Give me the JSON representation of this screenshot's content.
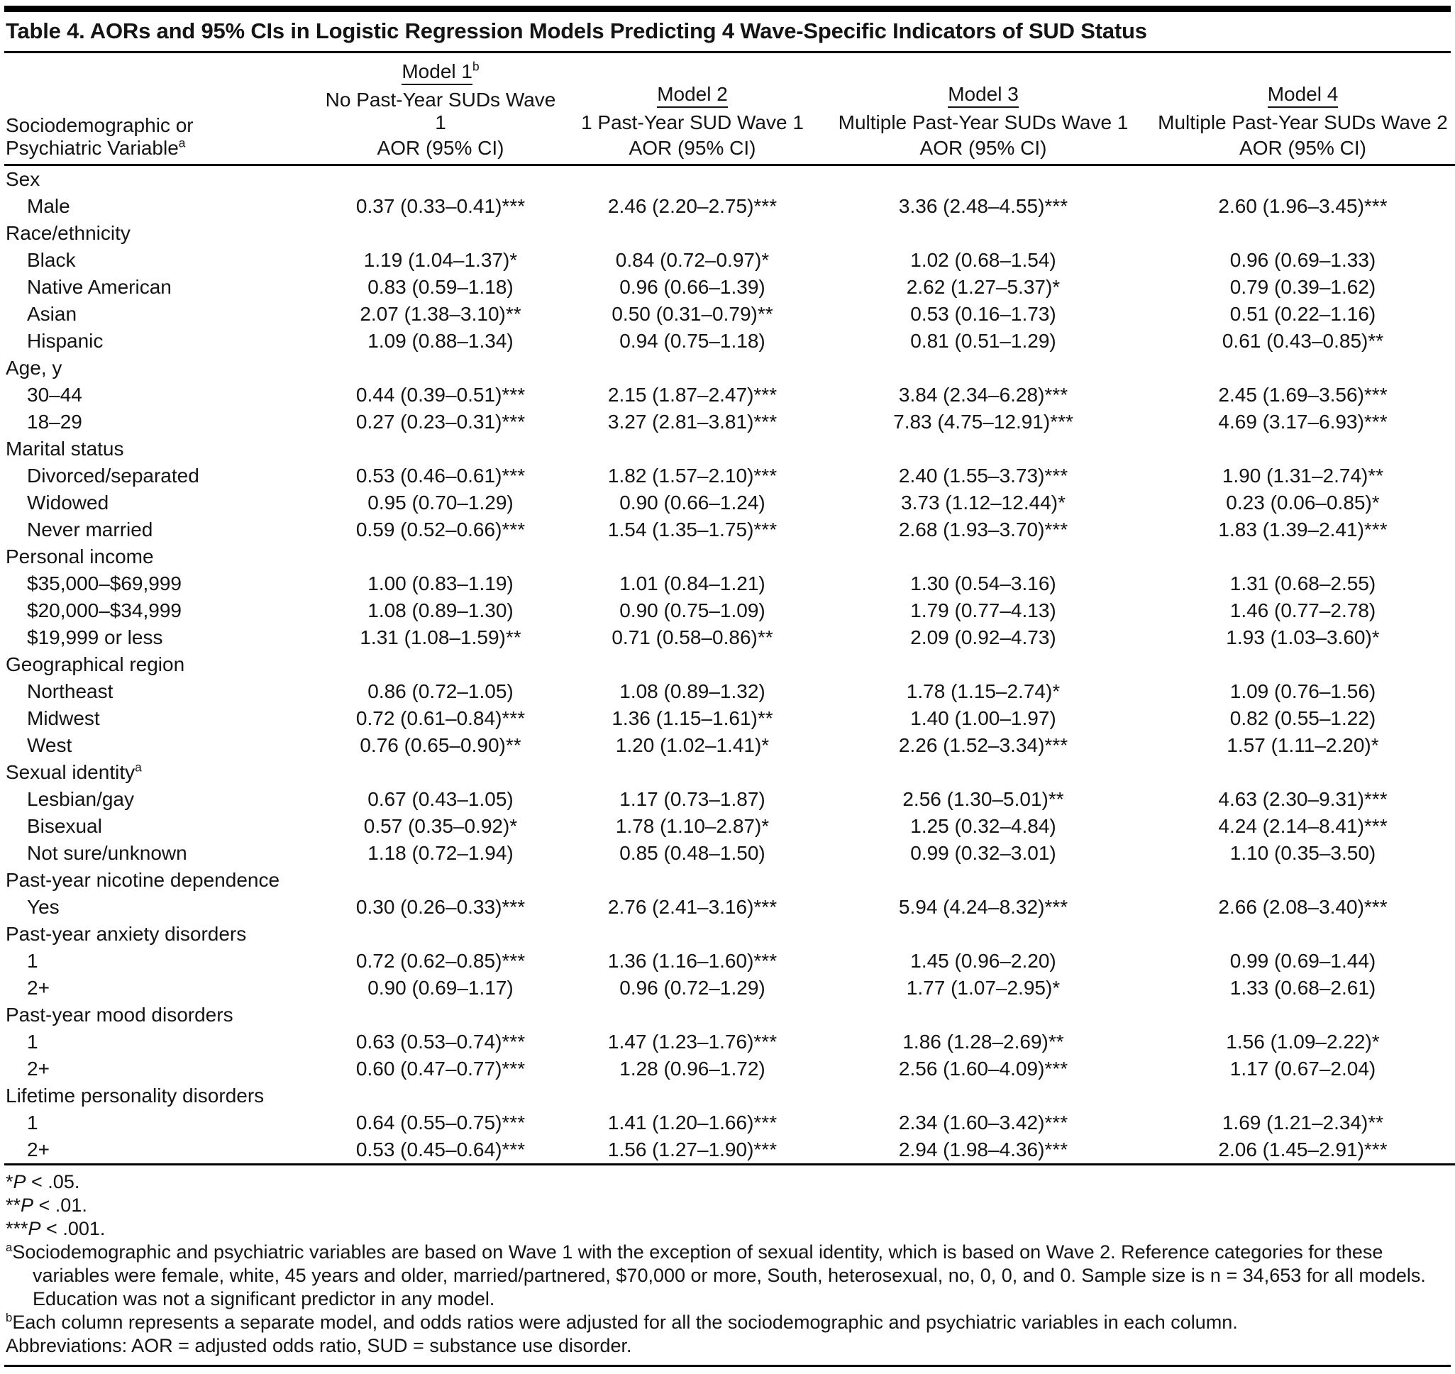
{
  "title": "Table 4. AORs and 95% CIs in Logistic Regression Models Predicting 4 Wave-Specific Indicators of SUD Status",
  "table": {
    "stub_header": {
      "line1": "Sociodemographic or",
      "line2": "Psychiatric Variable",
      "line2_sup": "a"
    },
    "columns": [
      {
        "model": "Model 1",
        "model_sup": "b",
        "description": "No Past-Year SUDs Wave 1",
        "measure": "AOR (95% CI)"
      },
      {
        "model": "Model 2",
        "model_sup": "",
        "description": "1 Past-Year SUD Wave 1",
        "measure": "AOR (95% CI)"
      },
      {
        "model": "Model 3",
        "model_sup": "",
        "description": "Multiple Past-Year SUDs Wave 1",
        "measure": "AOR (95% CI)"
      },
      {
        "model": "Model 4",
        "model_sup": "",
        "description": "Multiple Past-Year SUDs Wave 2",
        "measure": "AOR (95% CI)"
      }
    ],
    "rows": [
      {
        "type": "section",
        "label": "Sex",
        "sup": ""
      },
      {
        "type": "item",
        "label": "Male",
        "values": [
          "0.37 (0.33–0.41)***",
          "2.46 (2.20–2.75)***",
          "3.36 (2.48–4.55)***",
          "2.60 (1.96–3.45)***"
        ]
      },
      {
        "type": "section",
        "label": "Race/ethnicity",
        "sup": ""
      },
      {
        "type": "item",
        "label": "Black",
        "values": [
          "1.19 (1.04–1.37)*",
          "0.84 (0.72–0.97)*",
          "1.02 (0.68–1.54)",
          "0.96 (0.69–1.33)"
        ]
      },
      {
        "type": "item",
        "label": "Native American",
        "values": [
          "0.83 (0.59–1.18)",
          "0.96 (0.66–1.39)",
          "2.62 (1.27–5.37)*",
          "0.79 (0.39–1.62)"
        ]
      },
      {
        "type": "item",
        "label": "Asian",
        "values": [
          "2.07 (1.38–3.10)**",
          "0.50 (0.31–0.79)**",
          "0.53 (0.16–1.73)",
          "0.51 (0.22–1.16)"
        ]
      },
      {
        "type": "item",
        "label": "Hispanic",
        "values": [
          "1.09 (0.88–1.34)",
          "0.94 (0.75–1.18)",
          "0.81 (0.51–1.29)",
          "0.61 (0.43–0.85)**"
        ]
      },
      {
        "type": "section",
        "label": "Age, y",
        "sup": ""
      },
      {
        "type": "item",
        "label": "30–44",
        "values": [
          "0.44 (0.39–0.51)***",
          "2.15 (1.87–2.47)***",
          "3.84 (2.34–6.28)***",
          "2.45 (1.69–3.56)***"
        ]
      },
      {
        "type": "item",
        "label": "18–29",
        "values": [
          "0.27 (0.23–0.31)***",
          "3.27 (2.81–3.81)***",
          "7.83 (4.75–12.91)***",
          "4.69 (3.17–6.93)***"
        ]
      },
      {
        "type": "section",
        "label": "Marital status",
        "sup": ""
      },
      {
        "type": "item",
        "label": "Divorced/separated",
        "values": [
          "0.53 (0.46–0.61)***",
          "1.82 (1.57–2.10)***",
          "2.40 (1.55–3.73)***",
          "1.90 (1.31–2.74)**"
        ]
      },
      {
        "type": "item",
        "label": "Widowed",
        "values": [
          "0.95 (0.70–1.29)",
          "0.90 (0.66–1.24)",
          "3.73 (1.12–12.44)*",
          "0.23 (0.06–0.85)*"
        ]
      },
      {
        "type": "item",
        "label": "Never married",
        "values": [
          "0.59 (0.52–0.66)***",
          "1.54 (1.35–1.75)***",
          "2.68 (1.93–3.70)***",
          "1.83 (1.39–2.41)***"
        ]
      },
      {
        "type": "section",
        "label": "Personal income",
        "sup": ""
      },
      {
        "type": "item",
        "label": "$35,000–$69,999",
        "values": [
          "1.00 (0.83–1.19)",
          "1.01 (0.84–1.21)",
          "1.30 (0.54–3.16)",
          "1.31 (0.68–2.55)"
        ]
      },
      {
        "type": "item",
        "label": "$20,000–$34,999",
        "values": [
          "1.08 (0.89–1.30)",
          "0.90 (0.75–1.09)",
          "1.79 (0.77–4.13)",
          "1.46 (0.77–2.78)"
        ]
      },
      {
        "type": "item",
        "label": "$19,999 or less",
        "values": [
          "1.31 (1.08–1.59)**",
          "0.71 (0.58–0.86)**",
          "2.09 (0.92–4.73)",
          "1.93 (1.03–3.60)*"
        ]
      },
      {
        "type": "section",
        "label": "Geographical region",
        "sup": ""
      },
      {
        "type": "item",
        "label": "Northeast",
        "values": [
          "0.86 (0.72–1.05)",
          "1.08 (0.89–1.32)",
          "1.78 (1.15–2.74)*",
          "1.09 (0.76–1.56)"
        ]
      },
      {
        "type": "item",
        "label": "Midwest",
        "values": [
          "0.72 (0.61–0.84)***",
          "1.36 (1.15–1.61)**",
          "1.40 (1.00–1.97)",
          "0.82 (0.55–1.22)"
        ]
      },
      {
        "type": "item",
        "label": "West",
        "values": [
          "0.76 (0.65–0.90)**",
          "1.20 (1.02–1.41)*",
          "2.26 (1.52–3.34)***",
          "1.57 (1.11–2.20)*"
        ]
      },
      {
        "type": "section",
        "label": "Sexual identity",
        "sup": "a"
      },
      {
        "type": "item",
        "label": "Lesbian/gay",
        "values": [
          "0.67 (0.43–1.05)",
          "1.17 (0.73–1.87)",
          "2.56 (1.30–5.01)**",
          "4.63 (2.30–9.31)***"
        ]
      },
      {
        "type": "item",
        "label": "Bisexual",
        "values": [
          "0.57 (0.35–0.92)*",
          "1.78 (1.10–2.87)*",
          "1.25 (0.32–4.84)",
          "4.24 (2.14–8.41)***"
        ]
      },
      {
        "type": "item",
        "label": "Not sure/unknown",
        "values": [
          "1.18 (0.72–1.94)",
          "0.85 (0.48–1.50)",
          "0.99 (0.32–3.01)",
          "1.10 (0.35–3.50)"
        ]
      },
      {
        "type": "section",
        "label": "Past-year nicotine dependence",
        "sup": ""
      },
      {
        "type": "item",
        "label": "Yes",
        "values": [
          "0.30 (0.26–0.33)***",
          "2.76 (2.41–3.16)***",
          "5.94 (4.24–8.32)***",
          "2.66 (2.08–3.40)***"
        ]
      },
      {
        "type": "section",
        "label": "Past-year anxiety disorders",
        "sup": ""
      },
      {
        "type": "item",
        "label": "1",
        "values": [
          "0.72 (0.62–0.85)***",
          "1.36 (1.16–1.60)***",
          "1.45 (0.96–2.20)",
          "0.99 (0.69–1.44)"
        ]
      },
      {
        "type": "item",
        "label": "2+",
        "values": [
          "0.90 (0.69–1.17)",
          "0.96 (0.72–1.29)",
          "1.77 (1.07–2.95)*",
          "1.33 (0.68–2.61)"
        ]
      },
      {
        "type": "section",
        "label": "Past-year mood disorders",
        "sup": ""
      },
      {
        "type": "item",
        "label": "1",
        "values": [
          "0.63 (0.53–0.74)***",
          "1.47 (1.23–1.76)***",
          "1.86 (1.28–2.69)**",
          "1.56 (1.09–2.22)*"
        ]
      },
      {
        "type": "item",
        "label": "2+",
        "values": [
          "0.60 (0.47–0.77)***",
          "1.28 (0.96–1.72)",
          "2.56 (1.60–4.09)***",
          "1.17 (0.67–2.04)"
        ]
      },
      {
        "type": "section",
        "label": "Lifetime personality disorders",
        "sup": ""
      },
      {
        "type": "item",
        "label": "1",
        "values": [
          "0.64 (0.55–0.75)***",
          "1.41 (1.20–1.66)***",
          "2.34 (1.60–3.42)***",
          "1.69 (1.21–2.34)**"
        ]
      },
      {
        "type": "item",
        "label": "2+",
        "values": [
          "0.53 (0.45–0.64)***",
          "1.56 (1.27–1.90)***",
          "2.94 (1.98–4.36)***",
          "2.06 (1.45–2.91)***"
        ]
      }
    ]
  },
  "footnotes": {
    "p_label": "P",
    "significance": [
      {
        "stars": "*",
        "rest": " < .05."
      },
      {
        "stars": "**",
        "rest": " < .01."
      },
      {
        "stars": "***",
        "rest": " < .001."
      }
    ],
    "notes": [
      {
        "sup": "a",
        "text": "Sociodemographic and psychiatric variables are based on Wave 1 with the exception of sexual identity, which is based on Wave 2. Reference categories for these variables were female, white, 45 years and older, married/partnered, $70,000 or more, South, heterosexual, no, 0, 0, and 0. Sample size is n = 34,653 for all models. Education was not a significant predictor in any model."
      },
      {
        "sup": "b",
        "text": "Each column represents a separate model, and odds ratios were adjusted for all the sociodemographic and psychiatric variables in each column."
      }
    ],
    "abbreviations": "Abbreviations: AOR = adjusted odds ratio, SUD = substance use disorder."
  }
}
